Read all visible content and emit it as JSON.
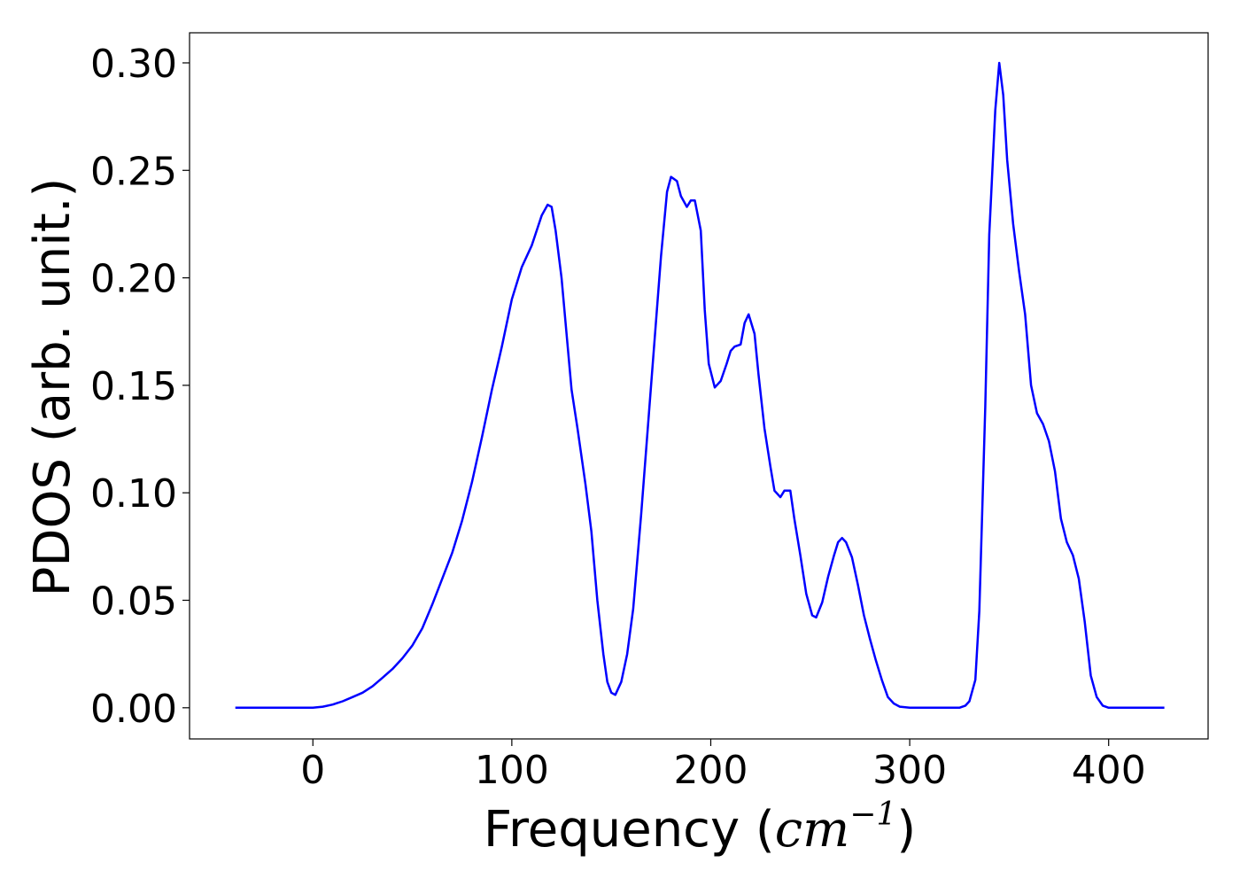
{
  "chart_data": {
    "type": "line",
    "title": "",
    "xlabel": "Frequency (",
    "xlabel_math": "cm",
    "xlabel_sup": "−1",
    "xlabel_close": ")",
    "ylabel": "PDOS (arb. unit.)",
    "xlim": [
      -62,
      450
    ],
    "ylim": [
      -0.0145,
      0.314
    ],
    "x_ticks": [
      0,
      100,
      200,
      300,
      400
    ],
    "y_ticks": [
      0.0,
      0.05,
      0.1,
      0.15,
      0.2,
      0.25,
      0.3
    ],
    "x_tick_labels": [
      "0",
      "100",
      "200",
      "300",
      "400"
    ],
    "y_tick_labels": [
      "0.00",
      "0.05",
      "0.10",
      "0.15",
      "0.20",
      "0.25",
      "0.30"
    ],
    "grid": false,
    "color": "#0000ff",
    "series": [
      {
        "x": [
          -39,
          0,
          5,
          10,
          15,
          20,
          25,
          30,
          35,
          40,
          45,
          50,
          55,
          60,
          65,
          70,
          75,
          80,
          85,
          90,
          95,
          100,
          105,
          110,
          115,
          118,
          120,
          122,
          125,
          130,
          133,
          137,
          140,
          143,
          146,
          148,
          150,
          152,
          155,
          158,
          161,
          165,
          170,
          175,
          178,
          180,
          183,
          185,
          188,
          190,
          192,
          195,
          197,
          199,
          202,
          205,
          208,
          210,
          212,
          215,
          217,
          219,
          222,
          224,
          227,
          230,
          232,
          235,
          237,
          240,
          242,
          245,
          248,
          251,
          253,
          256,
          259,
          262,
          264,
          266,
          268,
          271,
          274,
          277,
          280,
          283,
          286,
          289,
          292,
          295,
          300,
          310,
          320,
          325,
          328,
          330,
          333,
          335,
          338,
          340,
          343,
          345,
          347,
          349,
          352,
          355,
          358,
          361,
          364,
          367,
          370,
          373,
          376,
          379,
          382,
          385,
          388,
          391,
          394,
          397,
          400,
          410,
          428
        ],
        "y": [
          0.0,
          0.0,
          0.0005,
          0.0015,
          0.003,
          0.005,
          0.007,
          0.01,
          0.014,
          0.018,
          0.023,
          0.029,
          0.037,
          0.048,
          0.06,
          0.072,
          0.087,
          0.105,
          0.126,
          0.148,
          0.168,
          0.19,
          0.205,
          0.215,
          0.229,
          0.234,
          0.233,
          0.222,
          0.2,
          0.148,
          0.13,
          0.104,
          0.082,
          0.05,
          0.025,
          0.012,
          0.007,
          0.006,
          0.012,
          0.025,
          0.046,
          0.09,
          0.15,
          0.21,
          0.24,
          0.247,
          0.245,
          0.238,
          0.233,
          0.236,
          0.236,
          0.222,
          0.185,
          0.16,
          0.149,
          0.152,
          0.16,
          0.166,
          0.168,
          0.169,
          0.179,
          0.183,
          0.174,
          0.155,
          0.13,
          0.112,
          0.101,
          0.098,
          0.101,
          0.101,
          0.088,
          0.071,
          0.053,
          0.043,
          0.042,
          0.049,
          0.061,
          0.071,
          0.077,
          0.079,
          0.077,
          0.07,
          0.057,
          0.043,
          0.032,
          0.022,
          0.013,
          0.005,
          0.002,
          0.0005,
          0.0,
          0.0,
          0.0,
          0.0,
          0.001,
          0.003,
          0.013,
          0.045,
          0.14,
          0.22,
          0.278,
          0.3,
          0.285,
          0.255,
          0.225,
          0.203,
          0.183,
          0.15,
          0.137,
          0.132,
          0.124,
          0.11,
          0.088,
          0.077,
          0.071,
          0.06,
          0.04,
          0.015,
          0.005,
          0.001,
          0.0,
          0.0,
          0.0
        ]
      }
    ]
  }
}
